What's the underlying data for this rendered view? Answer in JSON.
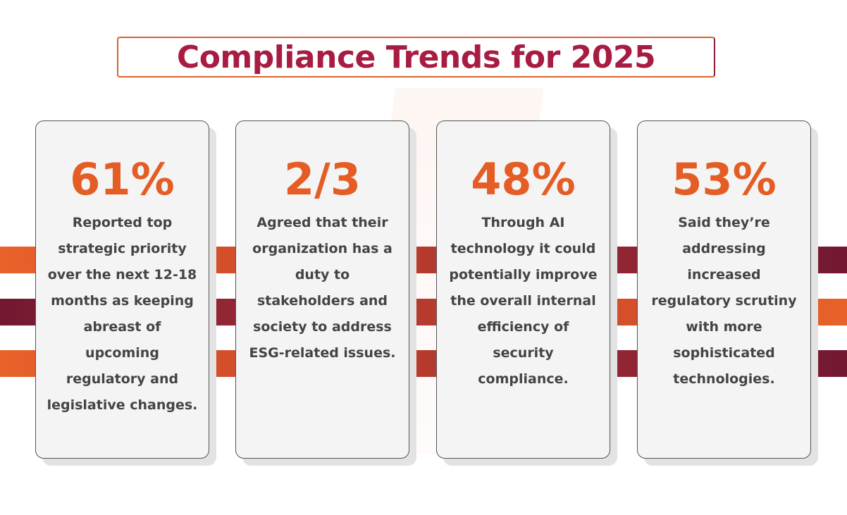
{
  "title": "Compliance Trends for 2025",
  "colors": {
    "title": "#a81c42",
    "accent_orange": "#e35d24",
    "maroon": "#731832"
  },
  "cards": [
    {
      "stat": "61%",
      "text": "Reported top strategic priority over the next 12-18 months as keeping abreast of upcoming regulatory and legislative changes."
    },
    {
      "stat": "2/3",
      "text": "Agreed that their organization has a duty to stakeholders and society to address ESG-related issues."
    },
    {
      "stat": "48%",
      "text": "Through AI technology it could potentially improve the overall internal efficiency of security compliance."
    },
    {
      "stat": "53%",
      "text": "Said they’re addressing increased regulatory scrutiny with more sophisticated technologies."
    }
  ]
}
